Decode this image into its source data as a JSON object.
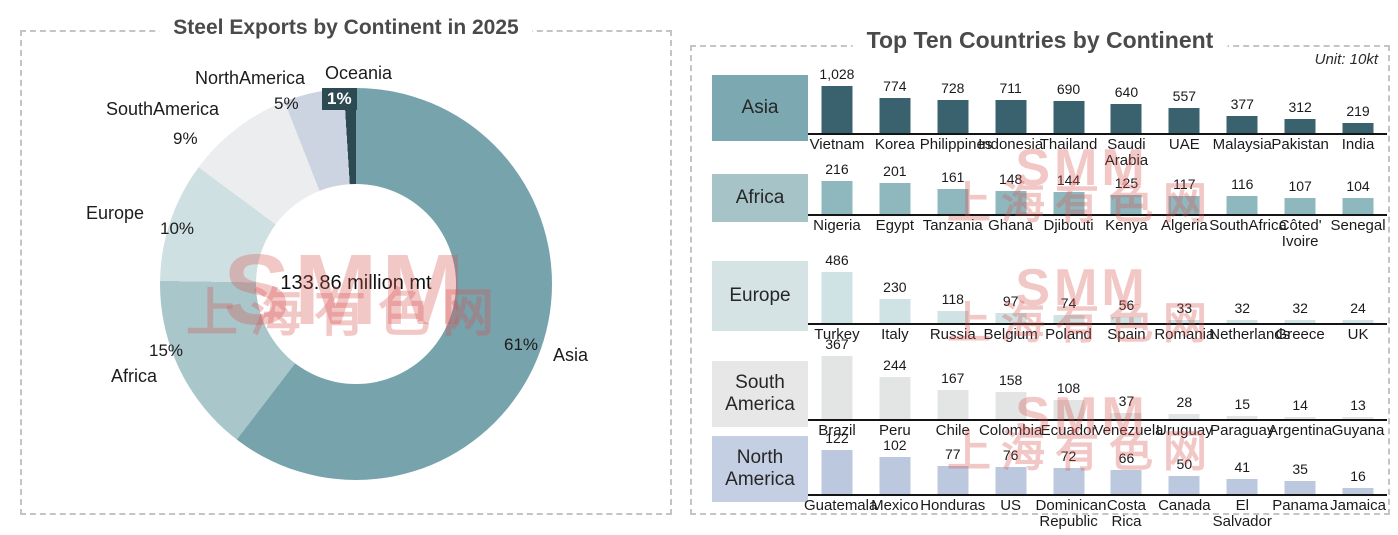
{
  "watermark": {
    "en": "SMM",
    "cn": "上海有色网"
  },
  "chart_data": [
    {
      "type": "pie",
      "donut": true,
      "title": "Steel Exports by Continent in 2025",
      "center_label": "133.86 million mt",
      "legend_position": "around-slices",
      "segments": [
        {
          "label": "Asia",
          "pct": 61,
          "pct_label": "61%",
          "color": "#77a3ad"
        },
        {
          "label": "Africa",
          "pct": 15,
          "pct_label": "15%",
          "color": "#a9c7cb"
        },
        {
          "label": "Europe",
          "pct": 10,
          "pct_label": "10%",
          "color": "#cfe0e2"
        },
        {
          "label": "SouthAmerica",
          "pct": 9,
          "pct_label": "9%",
          "color": "#ebedee"
        },
        {
          "label": "NorthAmerica",
          "pct": 5,
          "pct_label": "5%",
          "color": "#ccd3e1"
        },
        {
          "label": "Oceania",
          "pct": 1,
          "pct_label": "1%",
          "color": "#2d4a53",
          "highlight_badge": true
        }
      ]
    },
    {
      "type": "bar",
      "title": "Top Ten Countries by Continent",
      "unit_label": "Unit: 10kt",
      "grid": false,
      "rows": [
        {
          "continent": "Asia",
          "box_color": "#7ba8b1",
          "bar_color": "#3a616e",
          "categories": [
            "Vietnam",
            "Korea",
            "Philippines",
            "Indonesia",
            "Thailand",
            "Saudi Arabia",
            "UAE",
            "Malaysia",
            "Pakistan",
            "India"
          ],
          "values": [
            1028,
            774,
            728,
            711,
            690,
            640,
            557,
            377,
            312,
            219
          ]
        },
        {
          "continent": "Africa",
          "box_color": "#a6c3c8",
          "bar_color": "#8fb8be",
          "categories": [
            "Nigeria",
            "Egypt",
            "Tanzania",
            "Ghana",
            "Djibouti",
            "Kenya",
            "Algeria",
            "SouthAfrica",
            "Côted' Ivoire",
            "Senegal"
          ],
          "values": [
            216,
            201,
            161,
            148,
            144,
            125,
            117,
            116,
            107,
            104
          ]
        },
        {
          "continent": "Europe",
          "box_color": "#d5e3e5",
          "bar_color": "#cfe2e4",
          "categories": [
            "Turkey",
            "Italy",
            "Russia",
            "Belgium",
            "Poland",
            "Spain",
            "Romania",
            "Netherlands",
            "Greece",
            "UK"
          ],
          "values": [
            486,
            230,
            118,
            97,
            74,
            56,
            33,
            32,
            32,
            24
          ]
        },
        {
          "continent": "South America",
          "box_color": "#e7e7e7",
          "bar_color": "#e3e4e4",
          "categories": [
            "Brazil",
            "Peru",
            "Chile",
            "Colombia",
            "Ecuador",
            "Venezuela",
            "Uruguay",
            "Paraguay",
            "Argentina",
            "Guyana"
          ],
          "values": [
            367,
            244,
            167,
            158,
            108,
            37,
            28,
            15,
            14,
            13
          ]
        },
        {
          "continent": "North America",
          "box_color": "#c5cfe3",
          "bar_color": "#bcc8de",
          "categories": [
            "Guatemala",
            "Mexico",
            "Honduras",
            "US",
            "Dominican Republic",
            "Costa Rica",
            "Canada",
            "El Salvador",
            "Panama",
            "Jamaica"
          ],
          "values": [
            122,
            102,
            77,
            76,
            72,
            66,
            50,
            41,
            35,
            16
          ]
        }
      ]
    }
  ]
}
